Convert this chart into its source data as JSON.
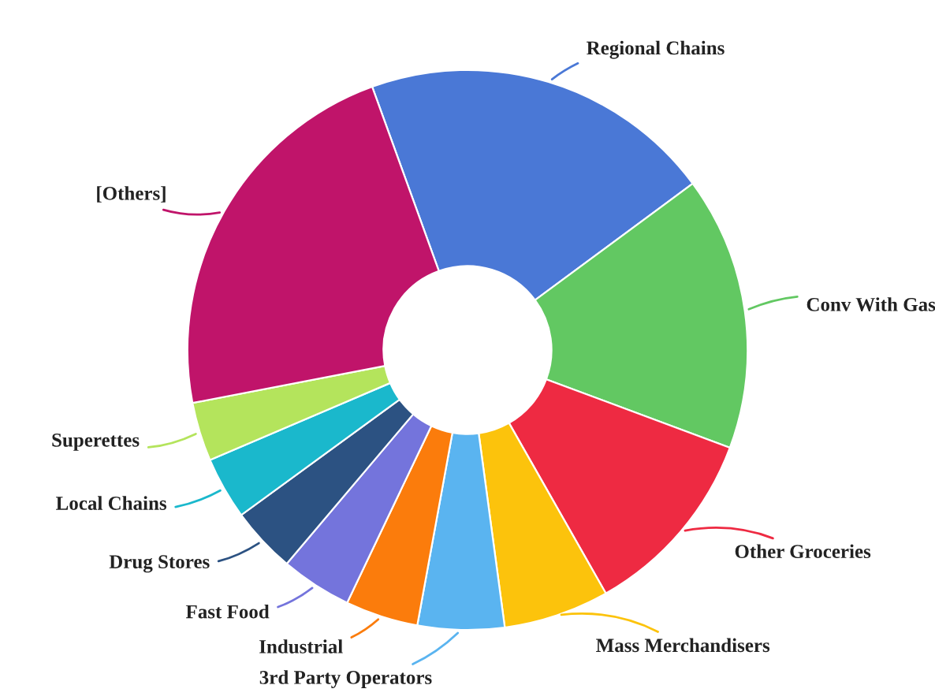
{
  "chart_data": {
    "type": "donut",
    "categories": [
      "Regional Chains",
      "Conv With Gas",
      "Other Groceries",
      "Mass Merchandisers",
      "3rd Party Operators",
      "Industrial",
      "Fast Food",
      "Drug Stores",
      "Local Chains",
      "Superettes",
      "[Others]"
    ],
    "values": [
      20.4,
      15.8,
      11.1,
      6.1,
      5.0,
      4.2,
      4.1,
      3.8,
      3.6,
      3.4,
      22.5
    ],
    "colors": [
      "#4a78d6",
      "#62c862",
      "#ee2a42",
      "#fcc30c",
      "#5ab4f0",
      "#fb7c0c",
      "#7474dc",
      "#2c5282",
      "#1ab8cc",
      "#b4e45c",
      "#c0146a"
    ],
    "legend": false
  }
}
